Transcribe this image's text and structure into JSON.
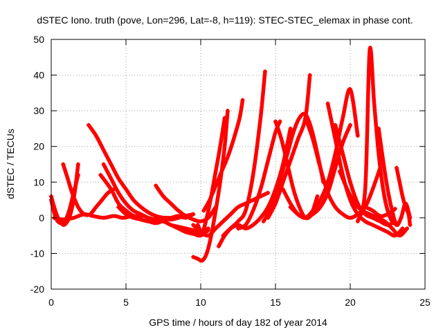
{
  "chart_data": {
    "type": "scatter",
    "title": "dSTEC Iono. truth (pove, Lon=296, Lat=-8, h=119): STEC-STEC_elemax in phase cont.",
    "xlabel": "GPS time / hours of day 182 of year 2014",
    "ylabel": "dSTEC  / TECUs",
    "xlim": [
      0,
      25
    ],
    "ylim": [
      -20,
      50
    ],
    "x_ticks": [
      0,
      5,
      10,
      15,
      20,
      25
    ],
    "y_ticks": [
      -20,
      -10,
      0,
      10,
      20,
      30,
      40,
      50
    ],
    "x_tick_labels": [
      "0",
      "5",
      "10",
      "15",
      "20",
      "25"
    ],
    "y_tick_labels": [
      "-20",
      "-10",
      "0",
      "10",
      "20",
      "30",
      "40",
      "50"
    ],
    "grid": true,
    "legend": "none",
    "marker": "plus",
    "color": "#ff0000",
    "series": [
      {
        "x": [
          0.0,
          0.2,
          0.4,
          0.6,
          0.8,
          1.0,
          1.2,
          1.4,
          1.6,
          1.8
        ],
        "y": [
          6,
          3,
          0.5,
          -1,
          -2,
          -1.5,
          0,
          3,
          8,
          15
        ]
      },
      {
        "x": [
          0.0,
          0.3,
          0.6,
          0.9,
          1.2,
          1.5,
          1.8
        ],
        "y": [
          5,
          0,
          -1.5,
          -1,
          2,
          7,
          12
        ]
      },
      {
        "x": [
          0.8,
          1.1,
          1.4,
          1.8,
          2.2,
          2.6,
          3.0,
          3.4,
          3.8,
          4.2
        ],
        "y": [
          15,
          11,
          7,
          3,
          1,
          1,
          3,
          5,
          7,
          8
        ]
      },
      {
        "x": [
          0.2,
          0.8,
          1.5,
          2.2,
          2.8,
          3.5,
          4.2,
          4.8,
          5.5,
          6.0
        ],
        "y": [
          0,
          -0.5,
          0,
          1,
          0.5,
          0,
          0.5,
          0,
          0.5,
          0
        ]
      },
      {
        "x": [
          2.5,
          3.0,
          3.5,
          4.0,
          4.5,
          5.0,
          5.5,
          6.0,
          6.5,
          7.0,
          7.5,
          8.0,
          8.5,
          9.0,
          9.5
        ],
        "y": [
          26,
          23,
          19,
          15,
          11,
          8,
          5,
          3,
          1.5,
          0.5,
          0,
          -0.5,
          0,
          0.5,
          1
        ]
      },
      {
        "x": [
          3.5,
          4.0,
          4.5,
          5.0,
          5.5,
          6.0,
          6.5,
          7.0,
          7.5,
          8.0,
          8.5,
          9.0,
          9.5
        ],
        "y": [
          15,
          11,
          7,
          4,
          2,
          1,
          0,
          -0.5,
          0,
          0,
          0.5,
          0,
          1
        ]
      },
      {
        "x": [
          3.3,
          4.0,
          4.5,
          5.0,
          5.5,
          6.0,
          6.5,
          7.0,
          7.5,
          8.0,
          8.5,
          9.0,
          9.5,
          10.0,
          10.5
        ],
        "y": [
          12,
          8,
          4,
          2,
          0.5,
          -0.5,
          -1,
          -1.5,
          -1,
          -2,
          -2.5,
          -3,
          -3.5,
          -4,
          -3
        ]
      },
      {
        "x": [
          4.5,
          5.0,
          5.5,
          6.0,
          6.5,
          7.0,
          7.5,
          8.0,
          8.5,
          9.0,
          9.5,
          10.0,
          10.5
        ],
        "y": [
          3,
          1,
          0,
          -0.5,
          -1,
          -0.5,
          -1,
          -2,
          -3,
          -4,
          -4.5,
          -5,
          -3.5
        ]
      },
      {
        "x": [
          7.0,
          7.5,
          8.0,
          8.5,
          9.0,
          9.5,
          10.0,
          10.5,
          11.0
        ],
        "y": [
          9,
          6,
          4,
          2,
          0.5,
          -0.5,
          -1,
          0,
          3
        ]
      },
      {
        "x": [
          9.5,
          10.0,
          10.5,
          11.0,
          11.5,
          12.0,
          12.5,
          13.0,
          13.5,
          14.0,
          14.5
        ],
        "y": [
          -2,
          -4,
          -5,
          -3,
          -1,
          1,
          3,
          4,
          5,
          6,
          7
        ]
      },
      {
        "x": [
          9.5,
          9.8,
          10.1,
          10.4,
          10.7,
          11.0,
          11.3,
          11.6,
          11.8
        ],
        "y": [
          -11,
          -11.5,
          -12,
          -10,
          -5,
          2,
          10,
          20,
          30
        ]
      },
      {
        "x": [
          9.8,
          10.1,
          10.4,
          10.7,
          11.0,
          11.3,
          11.6
        ],
        "y": [
          -2,
          -4,
          0,
          6,
          13,
          20,
          28
        ]
      },
      {
        "x": [
          10.2,
          10.6,
          11.0,
          11.4,
          11.8,
          12.2,
          12.6,
          12.8
        ],
        "y": [
          2,
          5,
          9,
          13,
          17,
          22,
          28,
          33
        ]
      },
      {
        "x": [
          11.2,
          11.6,
          12.0,
          12.5,
          13.0,
          13.5,
          14.0,
          14.3
        ],
        "y": [
          -8,
          -5,
          -3,
          -1,
          2,
          12,
          28,
          41
        ]
      },
      {
        "x": [
          11.5,
          12.0,
          12.5,
          13.0,
          13.5,
          14.0,
          14.5,
          15.0,
          15.5,
          16.0
        ],
        "y": [
          -5,
          -3,
          -2,
          -3,
          -2,
          0,
          3,
          8,
          15,
          25
        ]
      },
      {
        "x": [
          12.5,
          13.0,
          13.5,
          14.0,
          14.5,
          15.0,
          15.3
        ],
        "y": [
          -3,
          -2,
          2,
          8,
          16,
          24,
          27
        ]
      },
      {
        "x": [
          14.2,
          14.6,
          15.0,
          15.4,
          15.8,
          16.2,
          16.6,
          17.0,
          17.4,
          17.8,
          18.2
        ],
        "y": [
          -1,
          2,
          7,
          12,
          18,
          24,
          28,
          29,
          25,
          18,
          10
        ]
      },
      {
        "x": [
          14.5,
          15.0,
          15.5,
          16.0,
          16.5,
          17.0,
          17.3
        ],
        "y": [
          0,
          4,
          10,
          16,
          22,
          28,
          40
        ]
      },
      {
        "x": [
          15.0,
          15.4,
          15.8,
          16.2,
          16.6,
          17.0,
          17.4,
          17.8
        ],
        "y": [
          27,
          22,
          15,
          8,
          3,
          0,
          1,
          6
        ]
      },
      {
        "x": [
          15.5,
          16.0,
          16.5,
          17.0,
          17.5,
          18.0,
          18.5,
          19.0,
          19.5,
          20.0
        ],
        "y": [
          8,
          4,
          1,
          0,
          1,
          3,
          7,
          14,
          21,
          26
        ]
      },
      {
        "x": [
          16.0,
          16.5,
          17.0,
          17.5,
          18.0,
          18.5,
          19.0,
          19.5,
          20.0,
          20.5
        ],
        "y": [
          3,
          1,
          0,
          2,
          5,
          10,
          18,
          28,
          36,
          23
        ]
      },
      {
        "x": [
          17.0,
          17.5,
          18.0,
          18.5,
          19.0,
          19.5,
          20.0,
          20.5,
          21.0,
          21.5,
          22.0
        ],
        "y": [
          28,
          22,
          14,
          7,
          3,
          1,
          0,
          1,
          3,
          8,
          14
        ]
      },
      {
        "x": [
          18.5,
          19.0,
          19.5,
          20.0,
          20.5,
          21.0,
          21.5,
          22.0,
          22.5,
          23.0,
          23.5
        ],
        "y": [
          32,
          22,
          12,
          5,
          1,
          -1,
          -2,
          -3,
          -4,
          -5,
          -3
        ]
      },
      {
        "x": [
          19.0,
          19.5,
          20.0,
          20.5,
          21.0,
          21.5,
          22.0,
          22.5,
          23.0
        ],
        "y": [
          26,
          18,
          10,
          4,
          1,
          0,
          -1,
          -2,
          -1
        ]
      },
      {
        "x": [
          19.3,
          19.8,
          20.3,
          20.8,
          21.3,
          21.8,
          22.3,
          22.8,
          23.3,
          23.8
        ],
        "y": [
          13,
          8,
          4,
          2,
          1,
          0,
          -1,
          -3,
          -5,
          -3
        ]
      },
      {
        "x": [
          20.5,
          21.0,
          21.3,
          21.6,
          21.9,
          22.2,
          22.5,
          22.8,
          23.1
        ],
        "y": [
          -1,
          8,
          47,
          32,
          18,
          8,
          2,
          -1,
          -2
        ]
      },
      {
        "x": [
          21.9,
          22.2,
          22.5,
          22.8,
          23.1,
          23.4,
          23.7,
          24.0
        ],
        "y": [
          25,
          16,
          8,
          2,
          -2,
          0,
          4,
          0
        ]
      },
      {
        "x": [
          23.1,
          23.3,
          23.5,
          23.7,
          23.9,
          24.0
        ],
        "y": [
          14,
          10,
          6,
          3,
          1,
          -2
        ]
      },
      {
        "x": [
          21.0,
          21.5,
          22.0,
          22.5,
          23.0
        ],
        "y": [
          3,
          2,
          0.5,
          1,
          2.5
        ]
      }
    ]
  }
}
